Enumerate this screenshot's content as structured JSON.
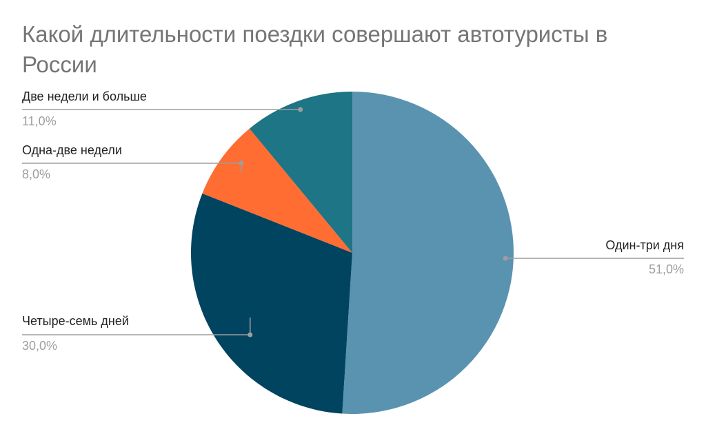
{
  "chart_data": {
    "type": "pie",
    "title": "Какой длительности поездки совершают автотуристы в России",
    "slices": [
      {
        "label": "Один-три дня",
        "value": 51.0,
        "display": "51,0%",
        "color": "#5a93b0"
      },
      {
        "label": "Четыре-семь дней",
        "value": 30.0,
        "display": "30,0%",
        "color": "#00445f"
      },
      {
        "label": "Одна-две недели",
        "value": 8.0,
        "display": "8,0%",
        "color": "#ff6d33"
      },
      {
        "label": "Две недели и больше",
        "value": 11.0,
        "display": "11,0%",
        "color": "#1d7585"
      }
    ],
    "start_angle_deg": 0,
    "direction": "clockwise",
    "legend": "none",
    "labels": "outside-with-leader-lines"
  }
}
